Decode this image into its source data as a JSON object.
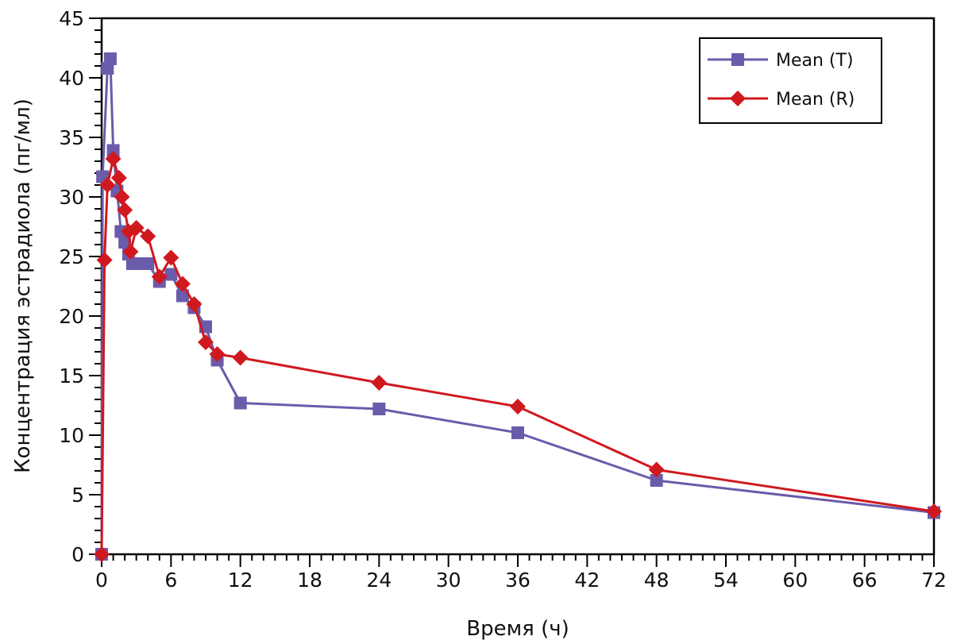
{
  "chart_data": {
    "type": "line",
    "title": "",
    "xlabel": "Время (ч)",
    "ylabel": "Концентрация эстрадиола (пг/мл)",
    "xlim": [
      0,
      72
    ],
    "ylim": [
      0,
      45
    ],
    "xticks": [
      0,
      6,
      12,
      18,
      24,
      30,
      36,
      42,
      48,
      54,
      60,
      66,
      72
    ],
    "xtick_labels": [
      "0",
      "6",
      "12",
      "18",
      "24",
      "30",
      "36",
      "42",
      "48",
      "54",
      "60",
      "66",
      "72"
    ],
    "x_minor_step": 1,
    "yticks": [
      0,
      5,
      10,
      15,
      20,
      25,
      30,
      35,
      40,
      45
    ],
    "ytick_labels": [
      "0",
      "5",
      "10",
      "15",
      "20",
      "25",
      "30",
      "35",
      "40",
      "45"
    ],
    "y_minor_step": 1,
    "grid": false,
    "legend_position": "top-right",
    "series": [
      {
        "name": "Mean (T)",
        "color": "#6b5bab",
        "marker": "square",
        "x": [
          0,
          0.08,
          0.5,
          0.75,
          1.0,
          1.33,
          1.67,
          2.0,
          2.33,
          2.67,
          3.0,
          4.0,
          5.0,
          6.0,
          7.0,
          8.0,
          9.0,
          10.0,
          12.0,
          24.0,
          36.0,
          48.0,
          72.0
        ],
        "values": [
          0,
          31.7,
          40.8,
          41.6,
          33.9,
          30.5,
          27.1,
          26.2,
          25.2,
          24.4,
          24.4,
          24.4,
          22.9,
          23.5,
          21.7,
          20.7,
          19.1,
          16.3,
          12.7,
          12.2,
          10.2,
          6.2,
          3.5
        ]
      },
      {
        "name": "Mean (R)",
        "color": "#d0191f",
        "marker": "diamond",
        "x": [
          0,
          0.25,
          0.5,
          1.0,
          1.5,
          1.75,
          2.0,
          2.33,
          2.5,
          3.0,
          4.0,
          5.0,
          6.0,
          7.0,
          8.0,
          9.0,
          10.0,
          12.0,
          24.0,
          36.0,
          48.0,
          72.0
        ],
        "values": [
          0,
          24.7,
          31.0,
          33.2,
          31.6,
          30.0,
          28.9,
          27.1,
          25.4,
          27.4,
          26.7,
          23.3,
          24.9,
          22.7,
          21.0,
          17.8,
          16.8,
          16.5,
          14.4,
          12.4,
          7.1,
          3.6
        ]
      }
    ]
  }
}
